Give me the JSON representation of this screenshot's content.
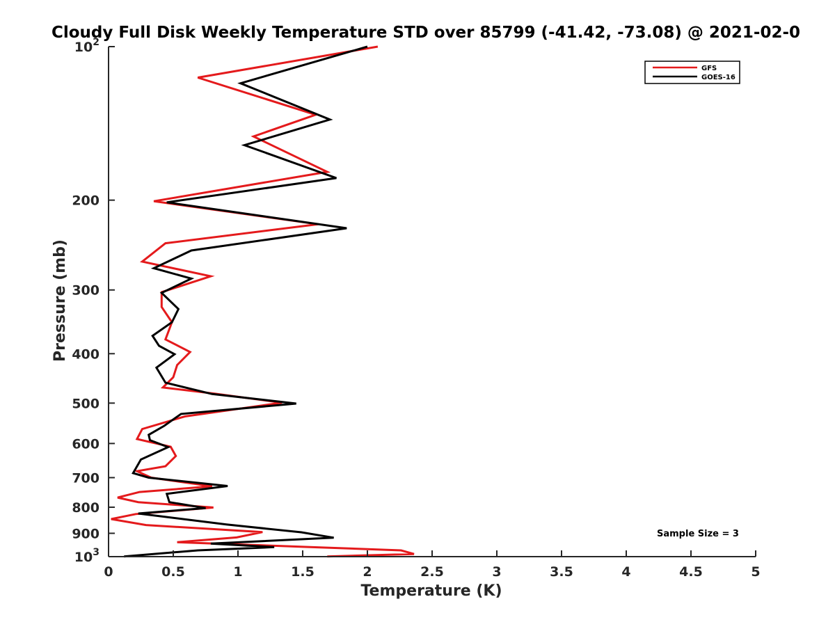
{
  "chart_data": {
    "type": "line",
    "title": "Cloudy Full Disk Weekly Temperature STD over 85799 (-41.42, -73.08) @ 2021-02-0",
    "xlabel": "Temperature (K)",
    "ylabel": "Pressure (mb)",
    "xlim": [
      0,
      5
    ],
    "ylim": [
      100,
      1000
    ],
    "y_scale": "log",
    "y_reversed": true,
    "x_ticks": [
      "0",
      "0.5",
      "1",
      "1.5",
      "2",
      "2.5",
      "3",
      "3.5",
      "4",
      "4.5",
      "5"
    ],
    "y_ticks": [
      {
        "value": 100,
        "base": "10",
        "exp": "2"
      },
      {
        "value": 200,
        "label": "200"
      },
      {
        "value": 300,
        "label": "300"
      },
      {
        "value": 400,
        "label": "400"
      },
      {
        "value": 500,
        "label": "500"
      },
      {
        "value": 600,
        "label": "600"
      },
      {
        "value": 700,
        "label": "700"
      },
      {
        "value": 800,
        "label": "800"
      },
      {
        "value": 900,
        "label": "900"
      },
      {
        "value": 1000,
        "base": "10",
        "exp": "3"
      }
    ],
    "grid": false,
    "legend_position": "top-right",
    "annotation": "Sample Size = 3",
    "series": [
      {
        "name": "GFS",
        "color": "#e41a1c",
        "points": [
          [
            2.08,
            100
          ],
          [
            0.69,
            115
          ],
          [
            1.6,
            136
          ],
          [
            1.12,
            150
          ],
          [
            1.69,
            176
          ],
          [
            0.35,
            201
          ],
          [
            1.62,
            223
          ],
          [
            0.44,
            243
          ],
          [
            0.26,
            264
          ],
          [
            0.79,
            282
          ],
          [
            0.41,
            303
          ],
          [
            0.41,
            324
          ],
          [
            0.49,
            347
          ],
          [
            0.44,
            375
          ],
          [
            0.63,
            397
          ],
          [
            0.53,
            421
          ],
          [
            0.5,
            445
          ],
          [
            0.42,
            466
          ],
          [
            0.82,
            479
          ],
          [
            1.34,
            499
          ],
          [
            0.59,
            531
          ],
          [
            0.26,
            562
          ],
          [
            0.22,
            588
          ],
          [
            0.48,
            609
          ],
          [
            0.52,
            635
          ],
          [
            0.44,
            665
          ],
          [
            0.22,
            680
          ],
          [
            0.33,
            700
          ],
          [
            0.8,
            728
          ],
          [
            0.24,
            747
          ],
          [
            0.07,
            766
          ],
          [
            0.23,
            782
          ],
          [
            0.81,
            801
          ],
          [
            0.21,
            825
          ],
          [
            0.02,
            844
          ],
          [
            0.29,
            867
          ],
          [
            1.19,
            895
          ],
          [
            0.99,
            917
          ],
          [
            0.53,
            937
          ],
          [
            1.52,
            957
          ],
          [
            2.26,
            972
          ],
          [
            2.36,
            988
          ],
          [
            1.69,
            999
          ]
        ]
      },
      {
        "name": "GOES-16",
        "color": "#000000",
        "points": [
          [
            2.0,
            100
          ],
          [
            1.02,
            118
          ],
          [
            1.71,
            139
          ],
          [
            1.05,
            156
          ],
          [
            1.76,
            181
          ],
          [
            0.45,
            202
          ],
          [
            1.84,
            227
          ],
          [
            0.64,
            251
          ],
          [
            0.35,
            272
          ],
          [
            0.64,
            285
          ],
          [
            0.41,
            304
          ],
          [
            0.54,
            327
          ],
          [
            0.49,
            347
          ],
          [
            0.34,
            369
          ],
          [
            0.39,
            386
          ],
          [
            0.51,
            401
          ],
          [
            0.37,
            426
          ],
          [
            0.44,
            456
          ],
          [
            0.8,
            480
          ],
          [
            1.45,
            501
          ],
          [
            0.56,
            525
          ],
          [
            0.43,
            554
          ],
          [
            0.31,
            577
          ],
          [
            0.32,
            591
          ],
          [
            0.46,
            610
          ],
          [
            0.25,
            645
          ],
          [
            0.19,
            686
          ],
          [
            0.31,
            700
          ],
          [
            0.92,
            727
          ],
          [
            0.45,
            753
          ],
          [
            0.47,
            782
          ],
          [
            0.75,
            803
          ],
          [
            0.23,
            823
          ],
          [
            0.91,
            865
          ],
          [
            1.49,
            896
          ],
          [
            1.74,
            918
          ],
          [
            0.79,
            943
          ],
          [
            1.28,
            958
          ],
          [
            0.69,
            972
          ],
          [
            0.12,
            999
          ]
        ]
      }
    ]
  }
}
